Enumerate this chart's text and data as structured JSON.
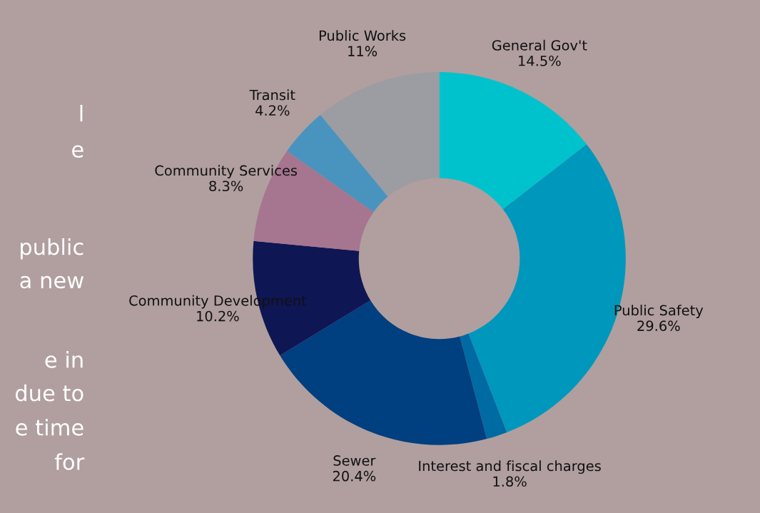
{
  "chart_data": {
    "type": "donut",
    "categories": [
      "General Gov't",
      "Public Safety",
      "Interest and fiscal charges",
      "Sewer",
      "Community Development",
      "Community Services",
      "Transit",
      "Public Works"
    ],
    "values": [
      14.5,
      29.6,
      1.8,
      20.4,
      10.2,
      8.3,
      4.2,
      11
    ],
    "value_labels": [
      "14.5%",
      "29.6%",
      "1.8%",
      "20.4%",
      "10.2%",
      "8.3%",
      "4.2%",
      "11%"
    ],
    "colors": [
      "#00c2cc",
      "#0097bd",
      "#006aa2",
      "#003f80",
      "#0f1654",
      "#a67590",
      "#4894be",
      "#9b9da2"
    ],
    "annotations": [
      "l",
      "e",
      "public",
      "a new",
      "e in",
      "due to",
      "e time",
      "for"
    ]
  }
}
